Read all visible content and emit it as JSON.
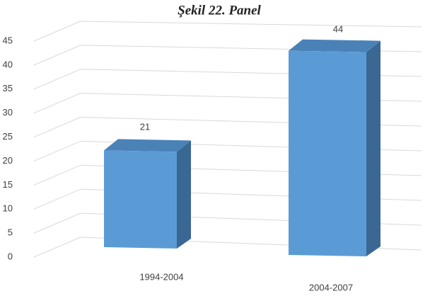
{
  "chart_data": {
    "type": "bar3d",
    "title": "Şekil 22. Panel",
    "categories": [
      "1994-2004",
      "2004-2007"
    ],
    "values": [
      21,
      44
    ],
    "color": "#5b9bd5",
    "ylim": [
      0,
      45
    ],
    "yticks": [
      0,
      5,
      10,
      15,
      20,
      25,
      30,
      35,
      40,
      45
    ],
    "grid": true
  }
}
